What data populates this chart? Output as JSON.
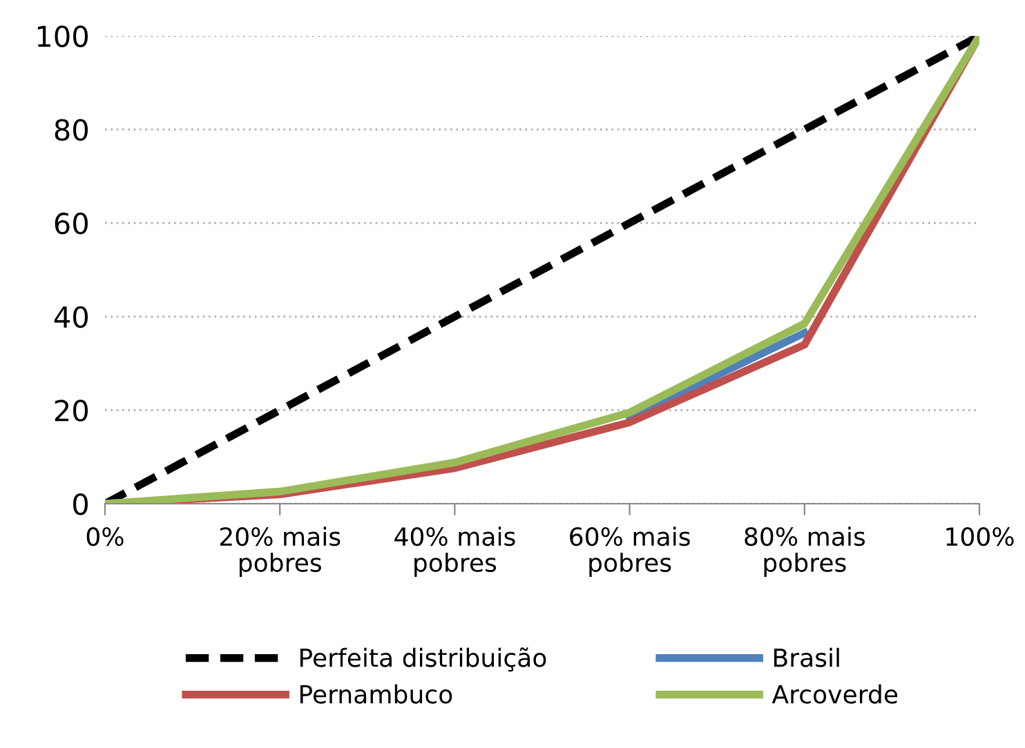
{
  "chart_data": {
    "type": "line",
    "categories": [
      "0%",
      "20% mais\npobres",
      "40% mais\npobres",
      "60% mais\npobres",
      "80% mais\npobres",
      "100%"
    ],
    "series": [
      {
        "name": "Perfeita distribuição",
        "color": "#000000",
        "line_style": "dashed",
        "values": [
          0,
          20,
          40,
          60,
          80,
          100
        ]
      },
      {
        "name": "Brasil",
        "color": "#4f81bd",
        "values": [
          null,
          null,
          null,
          18.5,
          36.5,
          null
        ]
      },
      {
        "name": "Pernambuco",
        "color": "#c0504d",
        "values": [
          0,
          2.0,
          7.6,
          17.4,
          34,
          100
        ]
      },
      {
        "name": "Arcoverde",
        "color": "#9bbb59",
        "values": [
          0,
          2.6,
          8.8,
          19.5,
          38.5,
          100
        ]
      }
    ],
    "ylim": [
      0,
      100
    ],
    "yticks": [
      0,
      20,
      40,
      60,
      80,
      100
    ],
    "grid": "y",
    "legend": "bottom",
    "marker": "none"
  }
}
